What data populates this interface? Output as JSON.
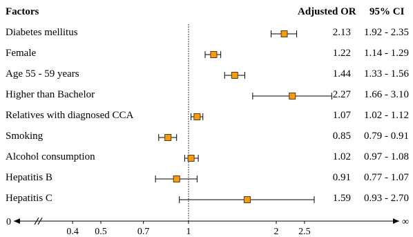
{
  "headers": {
    "factor": "Factors",
    "or": "Adjusted OR",
    "ci": "95% CI"
  },
  "chart_data": {
    "type": "forest",
    "reference_line": 1,
    "x_scale": "log",
    "x_axis": {
      "start_label": "0",
      "end_label": "∞",
      "ticks": [
        0.4,
        0.5,
        0.7,
        1,
        2,
        2.5
      ],
      "tick_labels": [
        "0.4",
        "0.5",
        "0.7",
        "1",
        "2",
        "2.5"
      ]
    },
    "marker_color": "#F39C12",
    "rows": [
      {
        "factor": "Diabetes mellitus",
        "or": 2.13,
        "lower": 1.92,
        "upper": 2.35,
        "or_label": "2.13",
        "ci_label": "1.92 - 2.35"
      },
      {
        "factor": "Female",
        "or": 1.22,
        "lower": 1.14,
        "upper": 1.29,
        "or_label": "1.22",
        "ci_label": "1.14 - 1.29"
      },
      {
        "factor": "Age 55 - 59 years",
        "or": 1.44,
        "lower": 1.33,
        "upper": 1.56,
        "or_label": "1.44",
        "ci_label": "1.33 - 1.56"
      },
      {
        "factor": "Higher than Bachelor",
        "or": 2.27,
        "lower": 1.66,
        "upper": 3.1,
        "or_label": "2.27",
        "ci_label": "1.66 - 3.10"
      },
      {
        "factor": "Relatives with diagnosed CCA",
        "or": 1.07,
        "lower": 1.02,
        "upper": 1.12,
        "or_label": "1.07",
        "ci_label": "1.02 - 1.12"
      },
      {
        "factor": "Smoking",
        "or": 0.85,
        "lower": 0.79,
        "upper": 0.91,
        "or_label": "0.85",
        "ci_label": "0.79 - 0.91"
      },
      {
        "factor": "Alcohol consumption",
        "or": 1.02,
        "lower": 0.97,
        "upper": 1.08,
        "or_label": "1.02",
        "ci_label": "0.97 - 1.08"
      },
      {
        "factor": "Hepatitis B",
        "or": 0.91,
        "lower": 0.77,
        "upper": 1.07,
        "or_label": "0.91",
        "ci_label": "0.77 - 1.07"
      },
      {
        "factor": "Hepatitis C",
        "or": 1.59,
        "lower": 0.93,
        "upper": 2.7,
        "or_label": "1.59",
        "ci_label": "0.93 - 2.70"
      }
    ]
  }
}
